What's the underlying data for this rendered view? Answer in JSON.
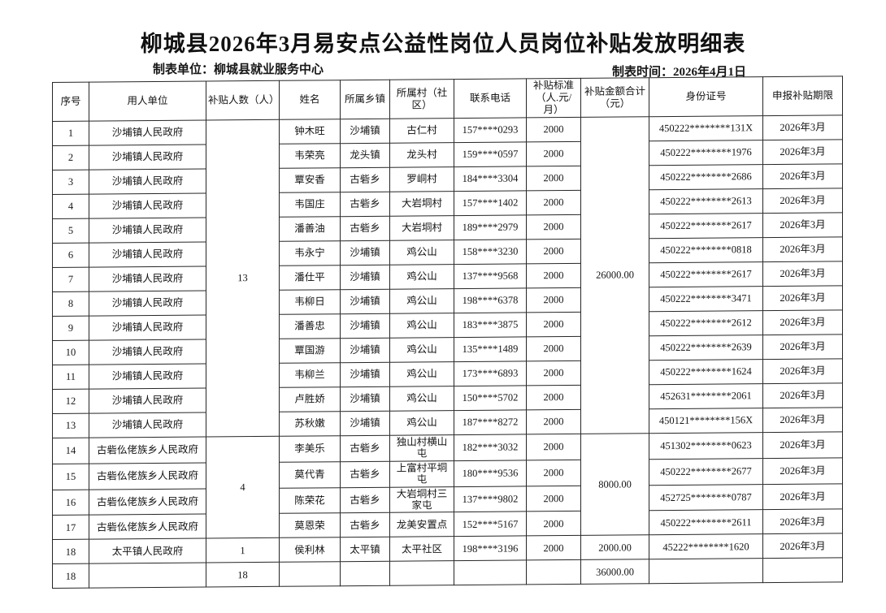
{
  "page": {
    "title": "柳城县2026年3月易安点公益性岗位人员岗位补贴发放明细表",
    "prepared_by": "制表单位：柳城县就业服务中心",
    "prepared_at": "制表时间：2026年4月1日"
  },
  "table": {
    "headers": [
      "序号",
      "用人单位",
      "补贴人数（人）",
      "姓名",
      "所属乡镇",
      "所属村（社区）",
      "联系电话",
      "补贴标准\n（人.元/月）",
      "补贴金额合计\n（元）",
      "身份证号",
      "申报补贴期限"
    ],
    "rows": [
      {
        "seq": "1",
        "employer": "沙埔镇人民政府",
        "count": "13",
        "count_span": 13,
        "name": "钟木旺",
        "town": "沙埔镇",
        "village": "古仁村",
        "phone": "157****0293",
        "standard": "2000",
        "amount": "26000.00",
        "amount_span": 13,
        "id": "450222********131X",
        "period": "2026年3月"
      },
      {
        "seq": "2",
        "employer": "沙埔镇人民政府",
        "name": "韦荣亮",
        "town": "龙头镇",
        "village": "龙头村",
        "phone": "159****0597",
        "standard": "2000",
        "id": "450222********1976",
        "period": "2026年3月"
      },
      {
        "seq": "3",
        "employer": "沙埔镇人民政府",
        "name": "覃安香",
        "town": "古砦乡",
        "village": "罗峒村",
        "phone": "184****3304",
        "standard": "2000",
        "id": "450222********2686",
        "period": "2026年3月"
      },
      {
        "seq": "4",
        "employer": "沙埔镇人民政府",
        "name": "韦国庄",
        "town": "古砦乡",
        "village": "大岩垌村",
        "phone": "157****1402",
        "standard": "2000",
        "id": "450222********2613",
        "period": "2026年3月"
      },
      {
        "seq": "5",
        "employer": "沙埔镇人民政府",
        "name": "潘善油",
        "town": "古砦乡",
        "village": "大岩垌村",
        "phone": "189****2979",
        "standard": "2000",
        "id": "450222********2617",
        "period": "2026年3月"
      },
      {
        "seq": "6",
        "employer": "沙埔镇人民政府",
        "name": "韦永宁",
        "town": "沙埔镇",
        "village": "鸡公山",
        "phone": "158****3230",
        "standard": "2000",
        "id": "450222********0818",
        "period": "2026年3月"
      },
      {
        "seq": "7",
        "employer": "沙埔镇人民政府",
        "name": "潘仕平",
        "town": "沙埔镇",
        "village": "鸡公山",
        "phone": "137****9568",
        "standard": "2000",
        "id": "450222********2617",
        "period": "2026年3月"
      },
      {
        "seq": "8",
        "employer": "沙埔镇人民政府",
        "name": "韦柳日",
        "town": "沙埔镇",
        "village": "鸡公山",
        "phone": "198****6378",
        "standard": "2000",
        "id": "450222********3471",
        "period": "2026年3月"
      },
      {
        "seq": "9",
        "employer": "沙埔镇人民政府",
        "name": "潘善忠",
        "town": "沙埔镇",
        "village": "鸡公山",
        "phone": "183****3875",
        "standard": "2000",
        "id": "450222********2612",
        "period": "2026年3月"
      },
      {
        "seq": "10",
        "employer": "沙埔镇人民政府",
        "name": "覃国游",
        "town": "沙埔镇",
        "village": "鸡公山",
        "phone": "135****1489",
        "standard": "2000",
        "id": "450222********2639",
        "period": "2026年3月"
      },
      {
        "seq": "11",
        "employer": "沙埔镇人民政府",
        "name": "韦柳兰",
        "town": "沙埔镇",
        "village": "鸡公山",
        "phone": "173****6893",
        "standard": "2000",
        "id": "450222********1624",
        "period": "2026年3月"
      },
      {
        "seq": "12",
        "employer": "沙埔镇人民政府",
        "name": "卢胜娇",
        "town": "沙埔镇",
        "village": "鸡公山",
        "phone": "150****5702",
        "standard": "2000",
        "id": "452631********2061",
        "period": "2026年3月"
      },
      {
        "seq": "13",
        "employer": "沙埔镇人民政府",
        "name": "苏秋嫩",
        "town": "沙埔镇",
        "village": "鸡公山",
        "phone": "187****8272",
        "standard": "2000",
        "id": "450121********156X",
        "period": "2026年3月"
      },
      {
        "seq": "14",
        "employer": "古砦仫佬族乡人民政府",
        "count": "4",
        "count_span": 4,
        "name": "李美乐",
        "town": "古砦乡",
        "village": "独山村横山屯",
        "phone": "182****3032",
        "standard": "2000",
        "amount": "8000.00",
        "amount_span": 4,
        "id": "451302********0623",
        "period": "2026年3月"
      },
      {
        "seq": "15",
        "employer": "古砦仫佬族乡人民政府",
        "name": "莫代青",
        "town": "古砦乡",
        "village": "上富村平垌屯",
        "phone": "180****9536",
        "standard": "2000",
        "id": "450222********2677",
        "period": "2026年3月"
      },
      {
        "seq": "16",
        "employer": "古砦仫佬族乡人民政府",
        "name": "陈荣花",
        "town": "古砦乡",
        "village": "大岩垌村三家屯",
        "phone": "137****9802",
        "standard": "2000",
        "id": "452725********0787",
        "period": "2026年3月"
      },
      {
        "seq": "17",
        "employer": "古砦仫佬族乡人民政府",
        "name": "莫恩荣",
        "town": "古砦乡",
        "village": "龙美安置点",
        "phone": "152****5167",
        "standard": "2000",
        "id": "450222********2611",
        "period": "2026年3月"
      },
      {
        "seq": "18",
        "employer": "太平镇人民政府",
        "count": "1",
        "count_span": 1,
        "name": "侯利林",
        "town": "太平镇",
        "village": "太平社区",
        "phone": "198****3196",
        "standard": "2000",
        "amount": "2000.00",
        "amount_span": 1,
        "id": "45222********1620",
        "period": "2026年3月"
      }
    ],
    "total": [
      "18",
      "",
      "18",
      "",
      "",
      "",
      "",
      "",
      "36000.00",
      "",
      ""
    ]
  }
}
